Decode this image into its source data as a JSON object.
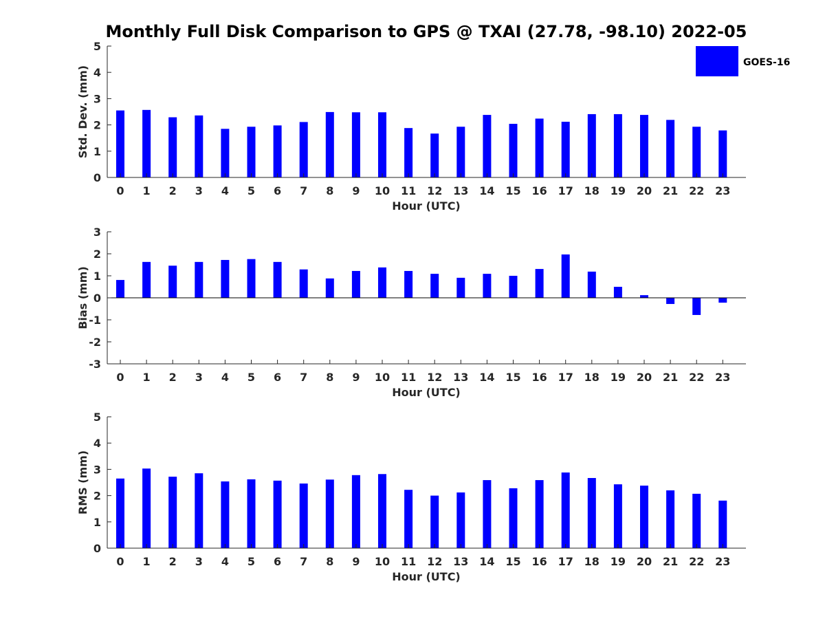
{
  "title": "Monthly Full Disk Comparison to GPS @ TXAI (27.78, -98.10) 2022-05",
  "legend": {
    "label": "GOES-16",
    "color": "#0000ff",
    "placement": "top-right"
  },
  "colors": {
    "bar": "#0000ff",
    "axis": "#262626"
  },
  "chart_data": [
    {
      "type": "bar",
      "xlabel": "Hour (UTC)",
      "ylabel": "Std. Dev. (mm)",
      "ylim": [
        0,
        5
      ],
      "yticks": [
        0,
        1,
        2,
        3,
        4,
        5
      ],
      "categories": [
        "0",
        "1",
        "2",
        "3",
        "4",
        "5",
        "6",
        "7",
        "8",
        "9",
        "10",
        "11",
        "12",
        "13",
        "14",
        "15",
        "16",
        "17",
        "18",
        "19",
        "20",
        "21",
        "22",
        "23"
      ],
      "series": [
        {
          "name": "GOES-16",
          "values": [
            2.55,
            2.57,
            2.29,
            2.36,
            1.85,
            1.93,
            1.98,
            2.11,
            2.49,
            2.48,
            2.48,
            1.88,
            1.67,
            1.93,
            2.38,
            2.04,
            2.24,
            2.12,
            2.41,
            2.41,
            2.38,
            2.19,
            1.93,
            1.79
          ]
        }
      ],
      "grid": false
    },
    {
      "type": "bar",
      "xlabel": "Hour (UTC)",
      "ylabel": "Bias (mm)",
      "ylim": [
        -3,
        3
      ],
      "yticks": [
        -3,
        -2,
        -1,
        0,
        1,
        2,
        3
      ],
      "categories": [
        "0",
        "1",
        "2",
        "3",
        "4",
        "5",
        "6",
        "7",
        "8",
        "9",
        "10",
        "11",
        "12",
        "13",
        "14",
        "15",
        "16",
        "17",
        "18",
        "19",
        "20",
        "21",
        "22",
        "23"
      ],
      "series": [
        {
          "name": "GOES-16",
          "values": [
            0.81,
            1.63,
            1.46,
            1.63,
            1.72,
            1.76,
            1.63,
            1.29,
            0.88,
            1.22,
            1.38,
            1.22,
            1.09,
            0.91,
            1.09,
            1.0,
            1.31,
            1.97,
            1.19,
            0.5,
            0.12,
            -0.28,
            -0.78,
            -0.22
          ]
        }
      ],
      "grid": false
    },
    {
      "type": "bar",
      "xlabel": "Hour (UTC)",
      "ylabel": "RMS (mm)",
      "ylim": [
        0,
        5
      ],
      "yticks": [
        0,
        1,
        2,
        3,
        4,
        5
      ],
      "categories": [
        "0",
        "1",
        "2",
        "3",
        "4",
        "5",
        "6",
        "7",
        "8",
        "9",
        "10",
        "11",
        "12",
        "13",
        "14",
        "15",
        "16",
        "17",
        "18",
        "19",
        "20",
        "21",
        "22",
        "23"
      ],
      "series": [
        {
          "name": "GOES-16",
          "values": [
            2.65,
            3.03,
            2.72,
            2.85,
            2.54,
            2.62,
            2.57,
            2.46,
            2.61,
            2.78,
            2.82,
            2.22,
            2.0,
            2.12,
            2.59,
            2.28,
            2.59,
            2.88,
            2.67,
            2.43,
            2.38,
            2.2,
            2.07,
            1.81
          ]
        }
      ],
      "grid": false
    }
  ]
}
